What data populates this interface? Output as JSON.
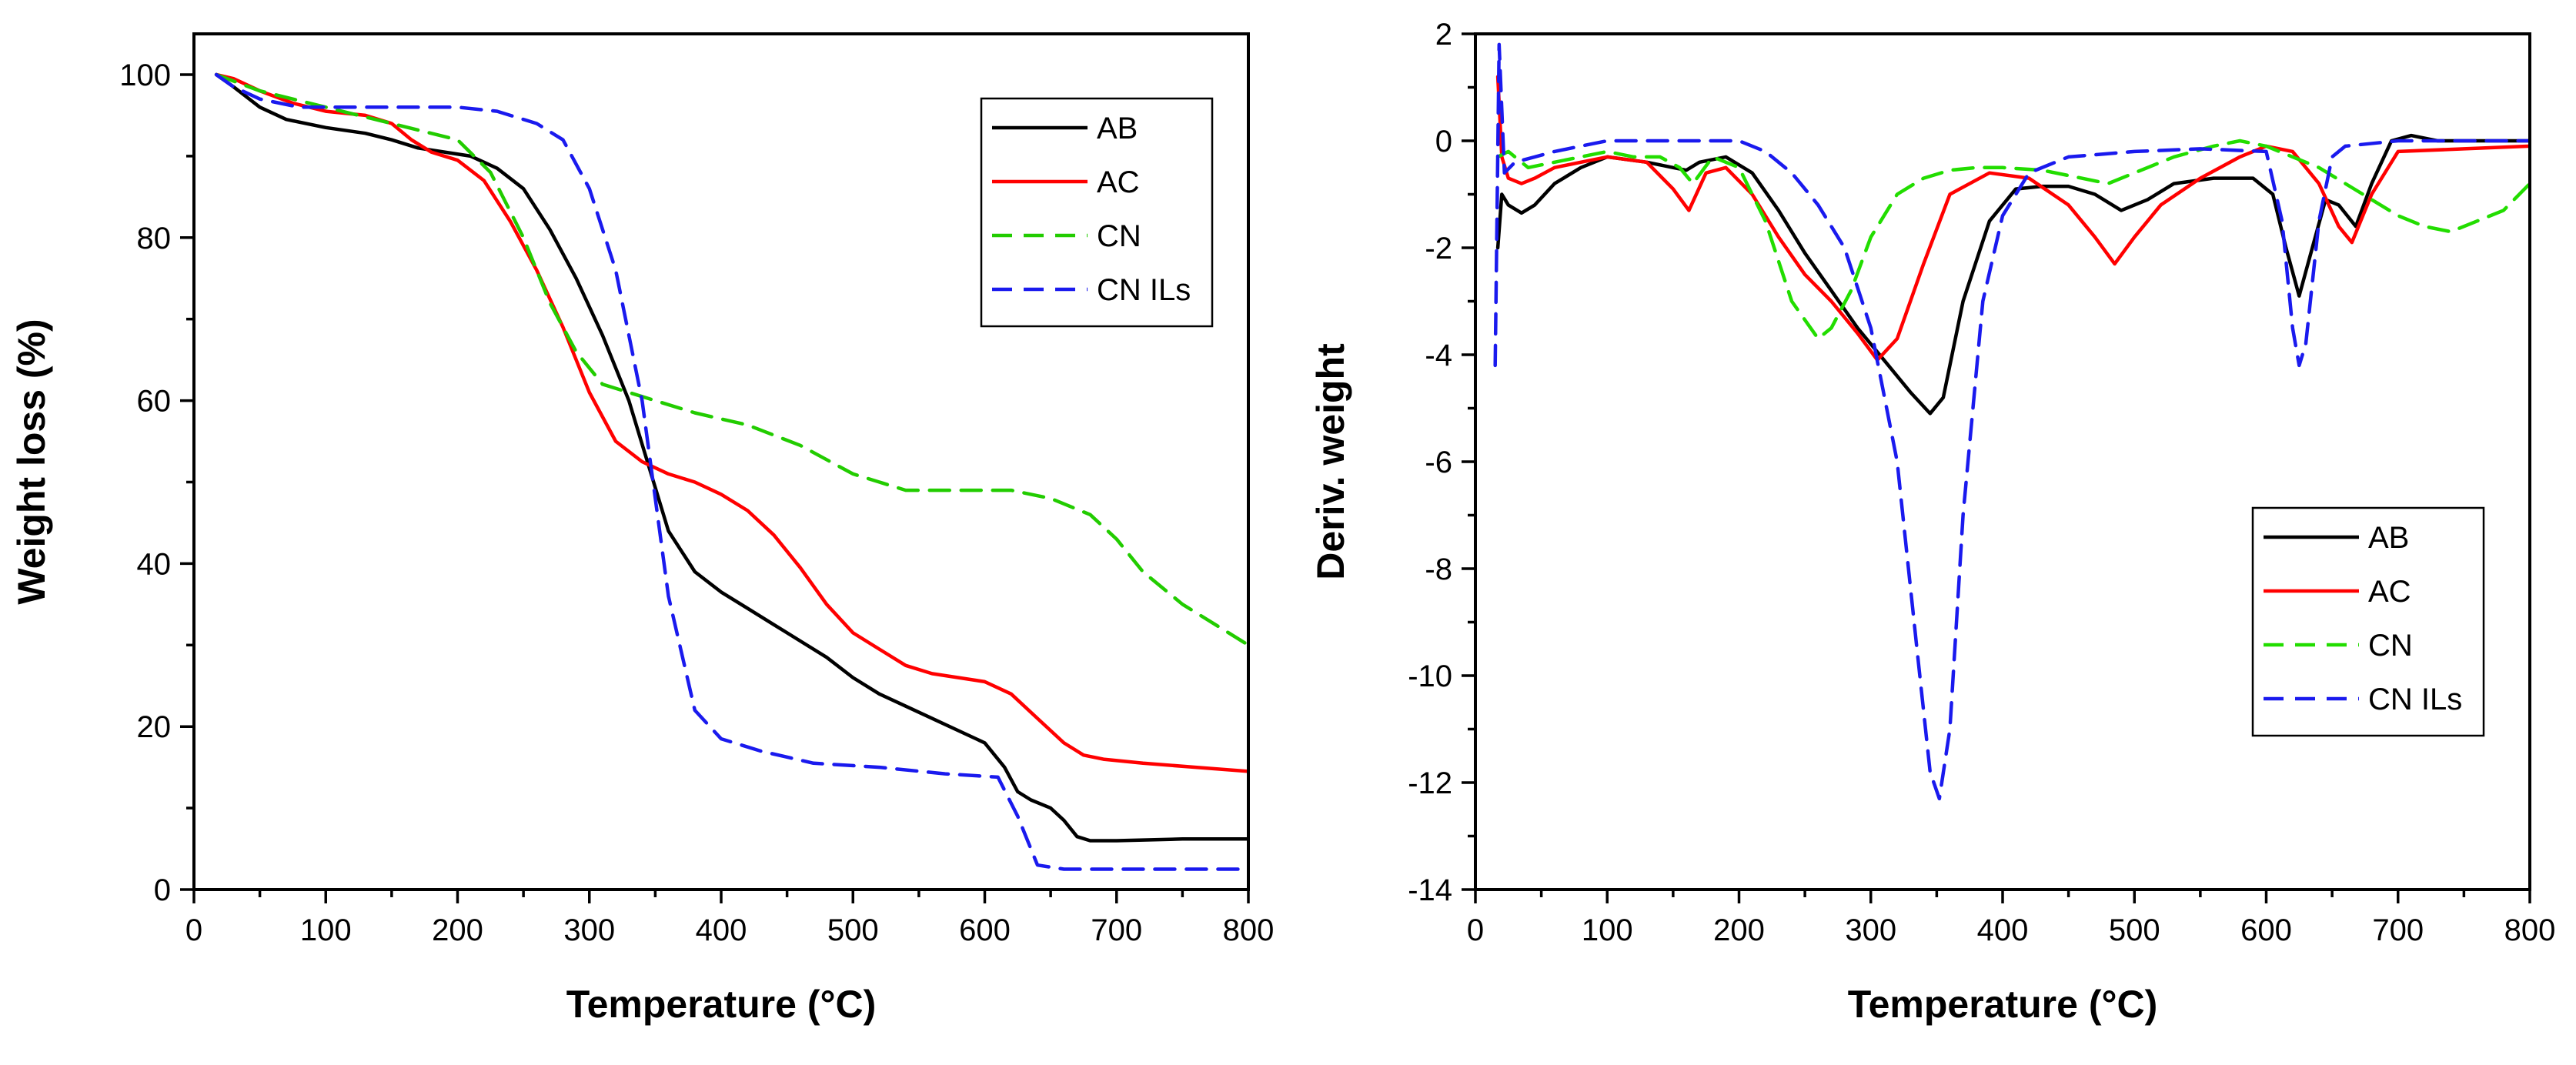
{
  "chart_data": [
    {
      "type": "line",
      "xlabel": "Temperature (°C)",
      "ylabel": "Weight loss (%)",
      "xlim": [
        0,
        800
      ],
      "ylim": [
        0,
        105
      ],
      "xticks": [
        0,
        100,
        200,
        300,
        400,
        500,
        600,
        700,
        800
      ],
      "yticks": [
        0,
        20,
        40,
        60,
        80,
        100
      ],
      "grid": false,
      "legend_position": "top-right",
      "series": [
        {
          "name": "AB",
          "color": "#000000",
          "dash": "solid",
          "x": [
            17,
            30,
            50,
            70,
            100,
            130,
            150,
            170,
            190,
            210,
            230,
            250,
            270,
            290,
            310,
            330,
            345,
            360,
            380,
            400,
            420,
            440,
            460,
            480,
            500,
            520,
            540,
            560,
            580,
            600,
            615,
            625,
            635,
            650,
            660,
            670,
            680,
            700,
            750,
            800
          ],
          "y": [
            100,
            98.5,
            96,
            94.5,
            93.5,
            92.8,
            92,
            91,
            90.5,
            90,
            88.5,
            86,
            81,
            75,
            68,
            60,
            52,
            44,
            39,
            36.5,
            34.5,
            32.5,
            30.5,
            28.5,
            26,
            24,
            22.5,
            21,
            19.5,
            18,
            15,
            12,
            11,
            10,
            8.5,
            6.5,
            6,
            6,
            6.2,
            6.2
          ]
        },
        {
          "name": "AC",
          "color": "#ff0000",
          "dash": "solid",
          "x": [
            17,
            30,
            50,
            75,
            100,
            130,
            150,
            165,
            180,
            200,
            220,
            240,
            260,
            280,
            300,
            320,
            340,
            360,
            380,
            400,
            420,
            440,
            460,
            480,
            500,
            520,
            540,
            560,
            580,
            600,
            620,
            640,
            660,
            675,
            690,
            720,
            760,
            800
          ],
          "y": [
            100,
            99.5,
            98,
            96.5,
            95.5,
            95,
            94,
            92,
            90.5,
            89.5,
            87,
            82,
            76,
            69,
            61,
            55,
            52.5,
            51,
            50,
            48.5,
            46.5,
            43.5,
            39.5,
            35,
            31.5,
            29.5,
            27.5,
            26.5,
            26,
            25.5,
            24,
            21,
            18,
            16.5,
            16,
            15.5,
            15,
            14.5
          ]
        },
        {
          "name": "CN",
          "color": "#22cc00",
          "dash": "dashed",
          "x": [
            17,
            50,
            100,
            150,
            200,
            225,
            250,
            270,
            290,
            310,
            330,
            350,
            380,
            420,
            460,
            500,
            540,
            580,
            620,
            650,
            680,
            700,
            720,
            750,
            780,
            800
          ],
          "y": [
            100,
            98,
            96,
            94,
            92,
            88,
            80,
            72,
            66,
            62,
            61,
            60,
            58.5,
            57,
            54.5,
            51,
            49,
            49,
            49,
            48,
            46,
            43,
            39,
            35,
            32,
            30
          ]
        },
        {
          "name": "CN ILs",
          "color": "#1a1aee",
          "dash": "dashed",
          "x": [
            17,
            30,
            50,
            80,
            120,
            160,
            200,
            230,
            260,
            280,
            300,
            320,
            340,
            360,
            380,
            400,
            430,
            470,
            520,
            570,
            610,
            625,
            640,
            660,
            700,
            800
          ],
          "y": [
            100,
            98.5,
            97,
            96,
            96,
            96,
            96,
            95.5,
            94,
            92,
            86,
            76,
            60,
            36,
            22,
            18.5,
            17,
            15.5,
            15,
            14.2,
            13.8,
            9,
            3,
            2.5,
            2.5,
            2.5
          ]
        }
      ]
    },
    {
      "type": "line",
      "xlabel": "Temperature (°C)",
      "ylabel": "Deriv. weight",
      "xlim": [
        0,
        800
      ],
      "ylim": [
        -14,
        2
      ],
      "xticks": [
        0,
        100,
        200,
        300,
        400,
        500,
        600,
        700,
        800
      ],
      "yticks": [
        -14,
        -12,
        -10,
        -8,
        -6,
        -4,
        -2,
        0,
        2
      ],
      "grid": false,
      "legend_position": "bottom-right",
      "series": [
        {
          "name": "AB",
          "color": "#000000",
          "dash": "solid",
          "x": [
            17,
            20,
            25,
            35,
            45,
            60,
            80,
            100,
            130,
            150,
            160,
            170,
            190,
            210,
            230,
            250,
            270,
            290,
            310,
            330,
            345,
            355,
            370,
            390,
            410,
            430,
            450,
            470,
            490,
            510,
            530,
            560,
            590,
            605,
            615,
            625,
            635,
            645,
            655,
            668,
            680,
            695,
            710,
            730,
            760,
            800
          ],
          "y": [
            -2,
            -1,
            -1.2,
            -1.35,
            -1.2,
            -0.8,
            -0.5,
            -0.3,
            -0.4,
            -0.5,
            -0.55,
            -0.4,
            -0.3,
            -0.6,
            -1.3,
            -2.1,
            -2.8,
            -3.5,
            -4.1,
            -4.7,
            -5.1,
            -4.8,
            -3,
            -1.5,
            -0.9,
            -0.85,
            -0.85,
            -1,
            -1.3,
            -1.1,
            -0.8,
            -0.7,
            -0.7,
            -1,
            -2,
            -2.9,
            -2,
            -1.1,
            -1.2,
            -1.6,
            -0.8,
            0,
            0.1,
            0,
            0,
            0
          ]
        },
        {
          "name": "AC",
          "color": "#ff0000",
          "dash": "solid",
          "x": [
            17,
            20,
            25,
            35,
            45,
            60,
            80,
            100,
            130,
            150,
            162,
            175,
            190,
            210,
            230,
            250,
            270,
            290,
            305,
            320,
            340,
            360,
            390,
            420,
            450,
            470,
            485,
            500,
            520,
            550,
            580,
            600,
            620,
            640,
            655,
            665,
            680,
            700,
            750,
            800
          ],
          "y": [
            1.2,
            -0.3,
            -0.7,
            -0.8,
            -0.7,
            -0.5,
            -0.4,
            -0.3,
            -0.4,
            -0.9,
            -1.3,
            -0.6,
            -0.5,
            -1,
            -1.8,
            -2.5,
            -3,
            -3.6,
            -4.1,
            -3.7,
            -2.3,
            -1,
            -0.6,
            -0.7,
            -1.2,
            -1.8,
            -2.3,
            -1.8,
            -1.2,
            -0.7,
            -0.3,
            -0.1,
            -0.2,
            -0.8,
            -1.6,
            -1.9,
            -1,
            -0.2,
            -0.15,
            -0.1
          ]
        },
        {
          "name": "CN",
          "color": "#22dd00",
          "dash": "dashed",
          "x": [
            17,
            25,
            40,
            60,
            80,
            100,
            120,
            140,
            155,
            165,
            180,
            200,
            220,
            240,
            260,
            270,
            285,
            300,
            320,
            340,
            360,
            380,
            400,
            430,
            460,
            480,
            500,
            530,
            560,
            580,
            600,
            620,
            640,
            660,
            680,
            700,
            720,
            740,
            760,
            780,
            800
          ],
          "y": [
            -0.3,
            -0.2,
            -0.5,
            -0.4,
            -0.3,
            -0.2,
            -0.3,
            -0.3,
            -0.5,
            -0.8,
            -0.3,
            -0.5,
            -1.5,
            -3,
            -3.7,
            -3.5,
            -2.8,
            -1.8,
            -1,
            -0.7,
            -0.55,
            -0.5,
            -0.5,
            -0.55,
            -0.7,
            -0.8,
            -0.6,
            -0.3,
            -0.1,
            0,
            -0.1,
            -0.3,
            -0.5,
            -0.8,
            -1.1,
            -1.4,
            -1.6,
            -1.7,
            -1.5,
            -1.3,
            -0.8
          ]
        },
        {
          "name": "CN ILs",
          "color": "#1a1aee",
          "dash": "dashed",
          "x": [
            15,
            18,
            22,
            30,
            45,
            60,
            80,
            100,
            120,
            150,
            180,
            200,
            220,
            240,
            260,
            280,
            300,
            320,
            335,
            345,
            352,
            360,
            370,
            385,
            400,
            420,
            450,
            500,
            550,
            600,
            612,
            620,
            625,
            630,
            640,
            650,
            660,
            700,
            800
          ],
          "y": [
            -4.2,
            1.8,
            -0.6,
            -0.4,
            -0.3,
            -0.2,
            -0.1,
            0,
            0,
            0,
            0,
            0,
            -0.2,
            -0.6,
            -1.2,
            -2,
            -3.5,
            -6,
            -9.5,
            -11.8,
            -12.3,
            -11,
            -7,
            -3,
            -1.4,
            -0.6,
            -0.3,
            -0.2,
            -0.15,
            -0.2,
            -1.5,
            -3.5,
            -4.2,
            -3.8,
            -1.5,
            -0.3,
            -0.1,
            0,
            0
          ]
        }
      ]
    }
  ]
}
